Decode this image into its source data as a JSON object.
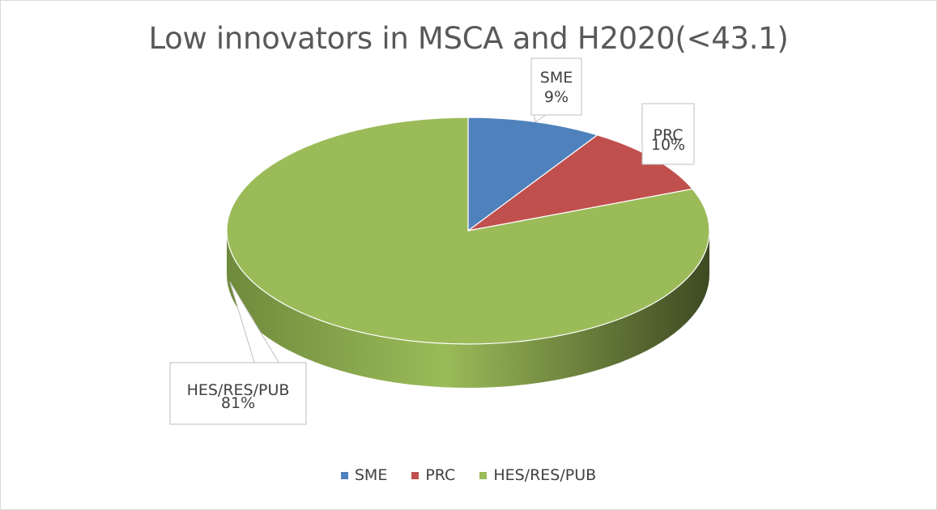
{
  "chart_data": {
    "type": "pie",
    "title": "Low innovators in MSCA and H2020(<43.1)",
    "categories": [
      "SME",
      "PRC",
      "HES/RES/PUB"
    ],
    "values": [
      9,
      10,
      81
    ],
    "value_labels": [
      "9%",
      "10%",
      "81%"
    ],
    "colors": [
      "#4f81bd",
      "#c0504d",
      "#9bbb59"
    ],
    "side_colors": [
      "#3a6290",
      "#8f3b39",
      "#6f8a3c"
    ],
    "legend_position": "bottom",
    "style": "3d"
  }
}
